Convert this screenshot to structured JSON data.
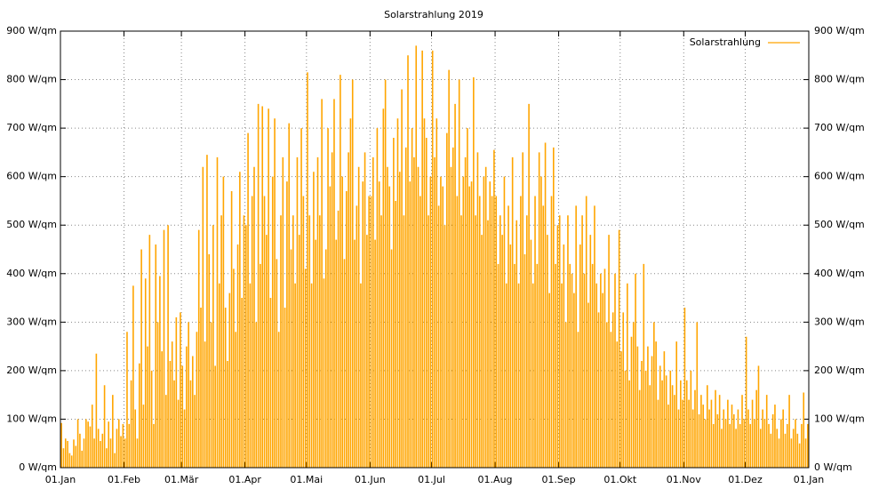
{
  "chart_data": {
    "type": "impulse",
    "title": "Solarstrahlung 2019",
    "series": [
      {
        "name": "Solarstrahlung",
        "color": "#ffa500",
        "values": [
          92,
          40,
          60,
          55,
          30,
          25,
          58,
          45,
          100,
          70,
          35,
          60,
          100,
          95,
          85,
          130,
          60,
          235,
          80,
          55,
          70,
          170,
          40,
          95,
          60,
          150,
          30,
          80,
          100,
          65,
          90,
          60,
          280,
          90,
          180,
          375,
          120,
          60,
          215,
          450,
          130,
          390,
          250,
          480,
          200,
          90,
          460,
          300,
          395,
          240,
          490,
          150,
          500,
          220,
          260,
          180,
          310,
          140,
          320,
          210,
          120,
          250,
          300,
          180,
          230,
          150,
          280,
          490,
          330,
          620,
          260,
          645,
          440,
          300,
          500,
          210,
          640,
          380,
          520,
          600,
          330,
          220,
          360,
          570,
          410,
          280,
          460,
          610,
          350,
          520,
          500,
          690,
          380,
          560,
          620,
          300,
          750,
          420,
          745,
          560,
          480,
          740,
          350,
          600,
          720,
          430,
          280,
          520,
          640,
          330,
          590,
          710,
          450,
          520,
          380,
          640,
          480,
          700,
          560,
          410,
          815,
          520,
          380,
          610,
          470,
          640,
          520,
          760,
          390,
          450,
          700,
          580,
          650,
          760,
          470,
          530,
          810,
          600,
          430,
          570,
          650,
          720,
          800,
          470,
          540,
          620,
          380,
          590,
          650,
          480,
          560,
          560,
          640,
          470,
          700,
          590,
          520,
          740,
          800,
          620,
          580,
          450,
          680,
          550,
          720,
          610,
          780,
          520,
          660,
          850,
          590,
          700,
          640,
          870,
          620,
          560,
          860,
          720,
          680,
          520,
          600,
          860,
          640,
          720,
          540,
          600,
          580,
          500,
          690,
          820,
          620,
          660,
          750,
          560,
          800,
          520,
          600,
          640,
          700,
          580,
          590,
          805,
          520,
          650,
          560,
          480,
          600,
          620,
          510,
          590,
          560,
          655,
          560,
          420,
          520,
          480,
          600,
          380,
          540,
          460,
          640,
          420,
          510,
          380,
          560,
          650,
          440,
          520,
          750,
          470,
          380,
          560,
          420,
          650,
          600,
          540,
          670,
          480,
          360,
          560,
          660,
          420,
          500,
          520,
          380,
          460,
          300,
          520,
          420,
          400,
          360,
          540,
          280,
          460,
          520,
          400,
          560,
          340,
          480,
          420,
          540,
          380,
          320,
          400,
          360,
          410,
          300,
          480,
          280,
          320,
          400,
          260,
          490,
          240,
          320,
          200,
          380,
          180,
          270,
          300,
          400,
          250,
          160,
          220,
          420,
          200,
          250,
          170,
          230,
          300,
          260,
          140,
          210,
          180,
          240,
          190,
          130,
          200,
          170,
          150,
          260,
          120,
          180,
          140,
          330,
          180,
          140,
          200,
          120,
          160,
          300,
          110,
          150,
          130,
          100,
          170,
          120,
          140,
          90,
          160,
          110,
          150,
          80,
          120,
          100,
          140,
          90,
          130,
          110,
          80,
          120,
          90,
          150,
          100,
          270,
          120,
          90,
          140,
          100,
          160,
          210,
          80,
          120,
          100,
          150,
          90,
          70,
          110,
          130,
          80,
          60,
          100,
          120,
          70,
          90,
          150,
          60,
          80,
          100,
          70,
          50,
          90,
          155,
          60,
          90
        ]
      }
    ],
    "xlim": [
      0,
      365
    ],
    "xticks": [
      {
        "value": 0,
        "label": "01.Jan"
      },
      {
        "value": 31,
        "label": "01.Feb"
      },
      {
        "value": 59,
        "label": "01.Mär"
      },
      {
        "value": 90,
        "label": "01.Apr"
      },
      {
        "value": 120,
        "label": "01.Mai"
      },
      {
        "value": 151,
        "label": "01.Jun"
      },
      {
        "value": 181,
        "label": "01.Jul"
      },
      {
        "value": 212,
        "label": "01.Aug"
      },
      {
        "value": 243,
        "label": "01.Sep"
      },
      {
        "value": 273,
        "label": "01.Okt"
      },
      {
        "value": 304,
        "label": "01.Nov"
      },
      {
        "value": 334,
        "label": "01.Dez"
      },
      {
        "value": 365,
        "label": "01.Jan"
      }
    ],
    "ylim": [
      0,
      900
    ],
    "yticks": [
      {
        "value": 0,
        "label": "0 W/qm"
      },
      {
        "value": 100,
        "label": "100 W/qm"
      },
      {
        "value": 200,
        "label": "200 W/qm"
      },
      {
        "value": 300,
        "label": "300 W/qm"
      },
      {
        "value": 400,
        "label": "400 W/qm"
      },
      {
        "value": 500,
        "label": "500 W/qm"
      },
      {
        "value": 600,
        "label": "600 W/qm"
      },
      {
        "value": 700,
        "label": "700 W/qm"
      },
      {
        "value": 800,
        "label": "800 W/qm"
      },
      {
        "value": 900,
        "label": "900 W/qm"
      }
    ],
    "grid": true,
    "legend": "top-right"
  }
}
